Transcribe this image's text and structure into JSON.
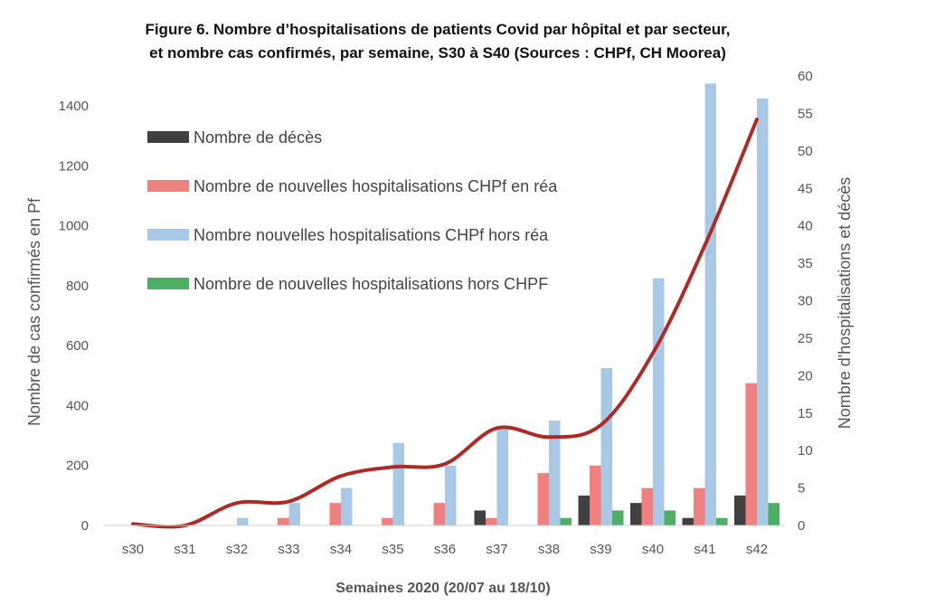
{
  "chart_data": {
    "type": "bar",
    "title_lines": [
      "Figure 6. Nombre d’hospitalisations de patients Covid par hôpital et par secteur,",
      "et nombre cas confirmés, par semaine, S30 à S40 (Sources : CHPf, CH Moorea)"
    ],
    "xlabel": "Semaines 2020 (20/07 au 18/10)",
    "ylabel_left": "Nombre de cas confirmés en Pf",
    "ylabel_right": "Nombre d'hospitalisations et décès",
    "categories": [
      "s30",
      "s31",
      "s32",
      "s33",
      "s34",
      "s35",
      "s36",
      "s37",
      "s38",
      "s39",
      "s40",
      "s41",
      "s42"
    ],
    "y_left": {
      "lim": [
        0,
        1400
      ],
      "ticks": [
        "0",
        "200",
        "400",
        "600",
        "800",
        "1000",
        "1200",
        "1400"
      ]
    },
    "y_right": {
      "lim": [
        0,
        60
      ],
      "ticks": [
        "0",
        "5",
        "10",
        "15",
        "20",
        "25",
        "30",
        "35",
        "40",
        "45",
        "50",
        "55",
        "60"
      ]
    },
    "legend_position": "top-left",
    "grid": false,
    "bar_series": [
      {
        "name": "Nombre de décès",
        "color": "#404040",
        "axis": "right",
        "values": [
          0,
          0,
          0,
          0,
          0,
          0,
          0,
          2,
          0,
          4,
          3,
          1,
          4
        ]
      },
      {
        "name": "Nombre de nouvelles hospitalisations CHPf en réa",
        "color": "#f08080",
        "axis": "right",
        "values": [
          0,
          0,
          0,
          1,
          3,
          1,
          3,
          1,
          7,
          8,
          5,
          5,
          19
        ]
      },
      {
        "name": "Nombre nouvelles hospitalisations CHPf hors réa",
        "color": "#a9c8e6",
        "axis": "right",
        "values": [
          0,
          0,
          1,
          3,
          5,
          11,
          8,
          13,
          14,
          21,
          33,
          59,
          57
        ]
      },
      {
        "name": "Nombre de nouvelles hospitalisations hors CHPF",
        "color": "#4caf63",
        "axis": "right",
        "values": [
          0,
          0,
          0,
          0,
          0,
          0,
          0,
          0,
          1,
          2,
          2,
          1,
          3
        ]
      }
    ],
    "line_series": {
      "color": "#b02a25",
      "axis": "left",
      "values": [
        5,
        0,
        75,
        80,
        165,
        195,
        205,
        325,
        295,
        335,
        575,
        935,
        1355
      ]
    }
  }
}
